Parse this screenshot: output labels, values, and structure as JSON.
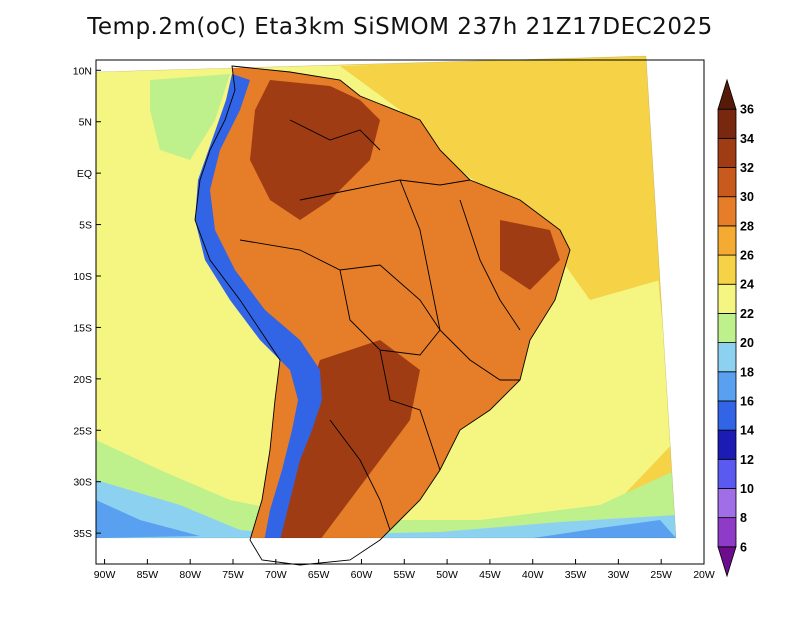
{
  "title": "Temp.2m(oC) Eta3km SiSMOM 237h 21Z17DEC2025",
  "map": {
    "variable": "2 m air temperature",
    "units": "oC",
    "lon_range": [
      -91,
      -20
    ],
    "lat_range": [
      -38,
      11
    ],
    "lat_ticks": [
      {
        "v": 10,
        "label": "10N"
      },
      {
        "v": 5,
        "label": "5N"
      },
      {
        "v": 0,
        "label": "EQ"
      },
      {
        "v": -5,
        "label": "5S"
      },
      {
        "v": -10,
        "label": "10S"
      },
      {
        "v": -15,
        "label": "15S"
      },
      {
        "v": -20,
        "label": "20S"
      },
      {
        "v": -25,
        "label": "25S"
      },
      {
        "v": -30,
        "label": "30S"
      },
      {
        "v": -35,
        "label": "35S"
      }
    ],
    "lon_ticks": [
      {
        "v": -90,
        "label": "90W"
      },
      {
        "v": -85,
        "label": "85W"
      },
      {
        "v": -80,
        "label": "80W"
      },
      {
        "v": -75,
        "label": "75W"
      },
      {
        "v": -70,
        "label": "70W"
      },
      {
        "v": -65,
        "label": "65W"
      },
      {
        "v": -60,
        "label": "60W"
      },
      {
        "v": -55,
        "label": "55W"
      },
      {
        "v": -50,
        "label": "50W"
      },
      {
        "v": -45,
        "label": "45W"
      },
      {
        "v": -40,
        "label": "40W"
      },
      {
        "v": -35,
        "label": "35W"
      },
      {
        "v": -30,
        "label": "30W"
      },
      {
        "v": -25,
        "label": "25W"
      },
      {
        "v": -20,
        "label": "20W"
      }
    ]
  },
  "colorbar": {
    "levels": [
      "6",
      "8",
      "10",
      "12",
      "14",
      "16",
      "18",
      "20",
      "22",
      "24",
      "26",
      "28",
      "30",
      "32",
      "34",
      "36"
    ],
    "colors": [
      "#6c0d8e",
      "#8e3cc8",
      "#a06ee6",
      "#5a5af0",
      "#1c1cb4",
      "#3264e6",
      "#5aa0f0",
      "#8cd2f0",
      "#bef08c",
      "#f5f582",
      "#f5d246",
      "#f5aa32",
      "#e67d28",
      "#c85a1e",
      "#a03c14",
      "#78280f",
      "#561a08"
    ]
  },
  "colors": {
    "ocean_cool": "#5aa0f0",
    "ocean_light": "#8cd2f0",
    "ocean_green": "#bef08c",
    "ocean_yellow": "#f5f582",
    "ocean_gold": "#f5d246",
    "land_orange": "#e67d28",
    "land_dark": "#a03c14",
    "andes_blue": "#3264e6",
    "borders": "#000000"
  }
}
